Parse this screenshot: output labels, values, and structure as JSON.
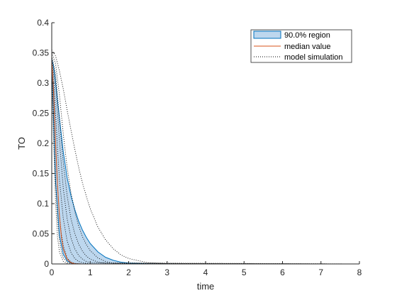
{
  "chart_data": {
    "type": "area",
    "xlabel": "time",
    "ylabel": "TO",
    "xlim": [
      0,
      8
    ],
    "ylim": [
      0,
      0.4
    ],
    "xticks": [
      0,
      1,
      2,
      3,
      4,
      5,
      6,
      7,
      8
    ],
    "yticks": [
      0,
      0.05,
      0.1,
      0.15,
      0.2,
      0.25,
      0.3,
      0.35,
      0.4
    ],
    "ytick_labels": [
      "0",
      "0.05",
      "0.1",
      "0.15",
      "0.2",
      "0.25",
      "0.3",
      "0.35",
      "0.4"
    ],
    "grid": false,
    "legend_position": "top-right",
    "legend": [
      "90.0% region",
      "median value",
      "model simulation"
    ],
    "colors": {
      "region_fill": "#bdd7ee",
      "region_edge": "#0072bd",
      "median": "#d95319",
      "simulation": "#000000",
      "axis": "#262626"
    },
    "region": {
      "name": "90.0% region",
      "x": [
        0,
        0.05,
        0.1,
        0.2,
        0.3,
        0.4,
        0.5,
        0.6,
        0.7,
        0.8,
        0.9,
        1.0,
        1.2,
        1.4,
        1.6,
        1.8,
        2.0,
        2.5,
        3.0,
        4.0,
        8.0
      ],
      "upper": [
        0.34,
        0.327,
        0.302,
        0.242,
        0.186,
        0.143,
        0.113,
        0.09,
        0.071,
        0.056,
        0.044,
        0.034,
        0.02,
        0.011,
        0.006,
        0.003,
        0.0015,
        0.0004,
        0.0001,
        0,
        0
      ],
      "lower": [
        0.34,
        0.23,
        0.135,
        0.047,
        0.016,
        0.005,
        0.0015,
        0.0005,
        0.0001,
        0,
        0,
        0,
        0,
        0,
        0,
        0,
        0,
        0,
        0,
        0,
        0
      ]
    },
    "median": {
      "name": "median value",
      "x": [
        0,
        0.05,
        0.1,
        0.15,
        0.2,
        0.25,
        0.3,
        0.4,
        0.5,
        0.6,
        0.8,
        1.0,
        8.0
      ],
      "y": [
        0.34,
        0.28,
        0.2,
        0.13,
        0.08,
        0.045,
        0.025,
        0.008,
        0.002,
        0.0005,
        0,
        0,
        0
      ]
    },
    "simulations": [
      {
        "name": "model simulation",
        "x": [
          0,
          0.1,
          0.2,
          0.3,
          0.4,
          0.5,
          0.6,
          0.7,
          0.8,
          0.9,
          1.0,
          1.2,
          1.4,
          1.6,
          1.8,
          2.0,
          2.5,
          3.0,
          8.0
        ],
        "y": [
          0.355,
          0.345,
          0.32,
          0.29,
          0.255,
          0.222,
          0.19,
          0.16,
          0.134,
          0.112,
          0.092,
          0.061,
          0.04,
          0.025,
          0.015,
          0.009,
          0.002,
          0.0005,
          0
        ]
      },
      {
        "x": [
          0,
          0.1,
          0.2,
          0.3,
          0.4,
          0.5,
          0.6,
          0.7,
          0.8,
          0.9,
          1.0,
          1.2,
          1.4,
          1.6,
          8.0
        ],
        "y": [
          0.35,
          0.332,
          0.28,
          0.215,
          0.16,
          0.118,
          0.087,
          0.063,
          0.045,
          0.032,
          0.022,
          0.01,
          0.004,
          0.001,
          0
        ]
      },
      {
        "x": [
          0,
          0.1,
          0.2,
          0.3,
          0.4,
          0.5,
          0.6,
          0.7,
          0.8,
          0.9,
          1.0,
          1.2,
          1.4,
          8.0
        ],
        "y": [
          0.345,
          0.315,
          0.24,
          0.168,
          0.113,
          0.075,
          0.05,
          0.033,
          0.021,
          0.013,
          0.008,
          0.003,
          0.001,
          0
        ]
      },
      {
        "x": [
          0,
          0.1,
          0.2,
          0.3,
          0.4,
          0.5,
          0.6,
          0.7,
          0.8,
          0.9,
          1.0,
          8.0
        ],
        "y": [
          0.34,
          0.3,
          0.205,
          0.125,
          0.075,
          0.043,
          0.025,
          0.014,
          0.008,
          0.004,
          0.002,
          0
        ]
      },
      {
        "x": [
          0,
          0.05,
          0.1,
          0.15,
          0.2,
          0.3,
          0.4,
          0.5,
          0.6,
          0.7,
          0.8,
          1.0,
          8.0
        ],
        "y": [
          0.335,
          0.31,
          0.25,
          0.19,
          0.14,
          0.075,
          0.038,
          0.019,
          0.009,
          0.004,
          0.002,
          0,
          0
        ]
      },
      {
        "x": [
          0,
          0.05,
          0.1,
          0.15,
          0.2,
          0.25,
          0.3,
          0.4,
          0.5,
          0.6,
          0.8,
          8.0
        ],
        "y": [
          0.33,
          0.29,
          0.2,
          0.13,
          0.08,
          0.05,
          0.03,
          0.01,
          0.003,
          0.001,
          0,
          0
        ]
      },
      {
        "x": [
          0,
          0.05,
          0.1,
          0.15,
          0.2,
          0.25,
          0.3,
          0.4,
          0.5,
          0.6,
          8.0
        ],
        "y": [
          0.32,
          0.24,
          0.14,
          0.075,
          0.04,
          0.02,
          0.01,
          0.003,
          0.001,
          0,
          0
        ]
      },
      {
        "x": [
          0,
          0.05,
          0.1,
          0.15,
          0.2,
          0.3,
          0.4,
          0.5,
          8.0
        ],
        "y": [
          0.31,
          0.2,
          0.1,
          0.045,
          0.02,
          0.004,
          0.001,
          0,
          0
        ]
      }
    ]
  }
}
